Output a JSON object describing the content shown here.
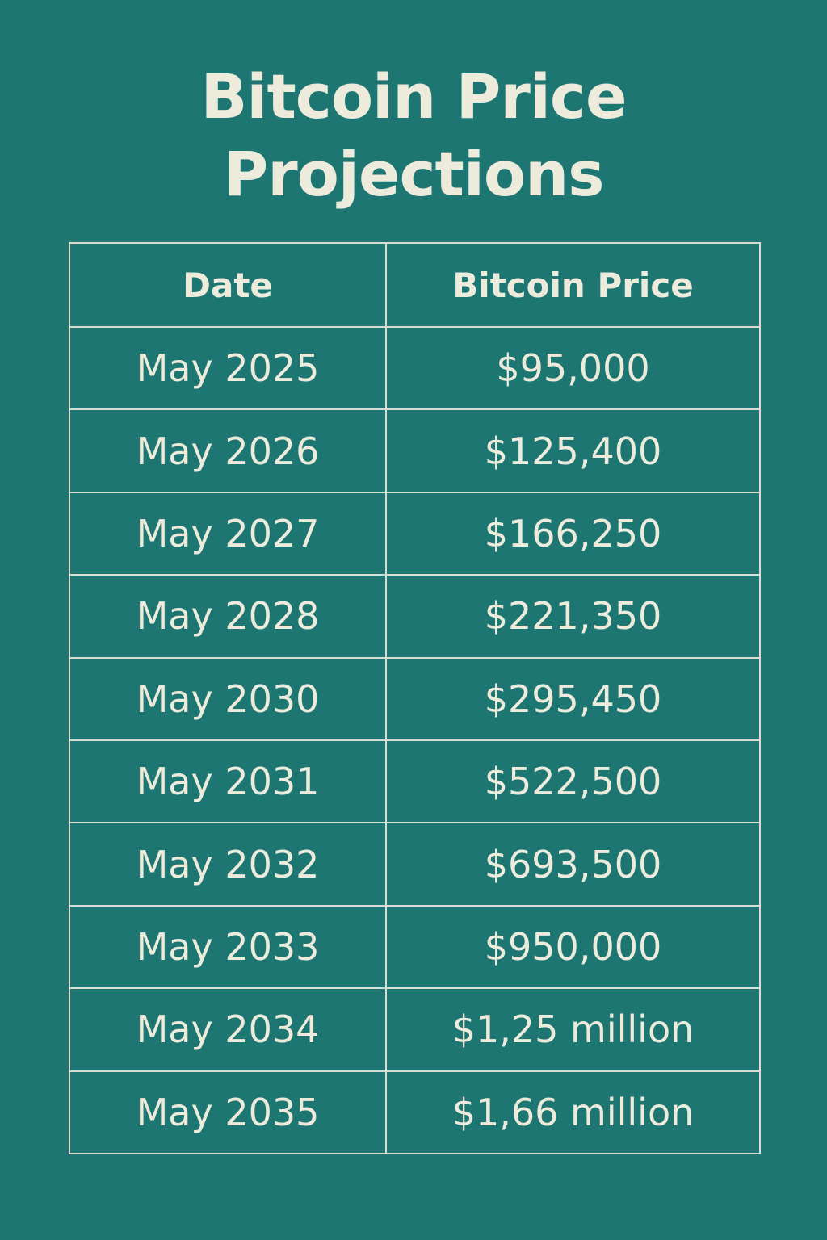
{
  "title": {
    "line1": "Bitcoin Price",
    "line2": "Projections"
  },
  "colors": {
    "background": "#1e7673",
    "text": "#ecebdc",
    "grid": "#d9ddd2"
  },
  "chart_data": {
    "type": "table",
    "title": "Bitcoin Price Projections",
    "columns": [
      "Date",
      "Bitcoin Price"
    ],
    "rows": [
      [
        "May 2025",
        "$95,000"
      ],
      [
        "May 2026",
        "$125,400"
      ],
      [
        "May 2027",
        "$166,250"
      ],
      [
        "May 2028",
        "$221,350"
      ],
      [
        "May 2030",
        "$295,450"
      ],
      [
        "May 2031",
        "$522,500"
      ],
      [
        "May 2032",
        "$693,500"
      ],
      [
        "May 2033",
        "$950,000"
      ],
      [
        "May 2034",
        "$1,25 million"
      ],
      [
        "May 2035",
        "$1,66 million"
      ]
    ]
  }
}
